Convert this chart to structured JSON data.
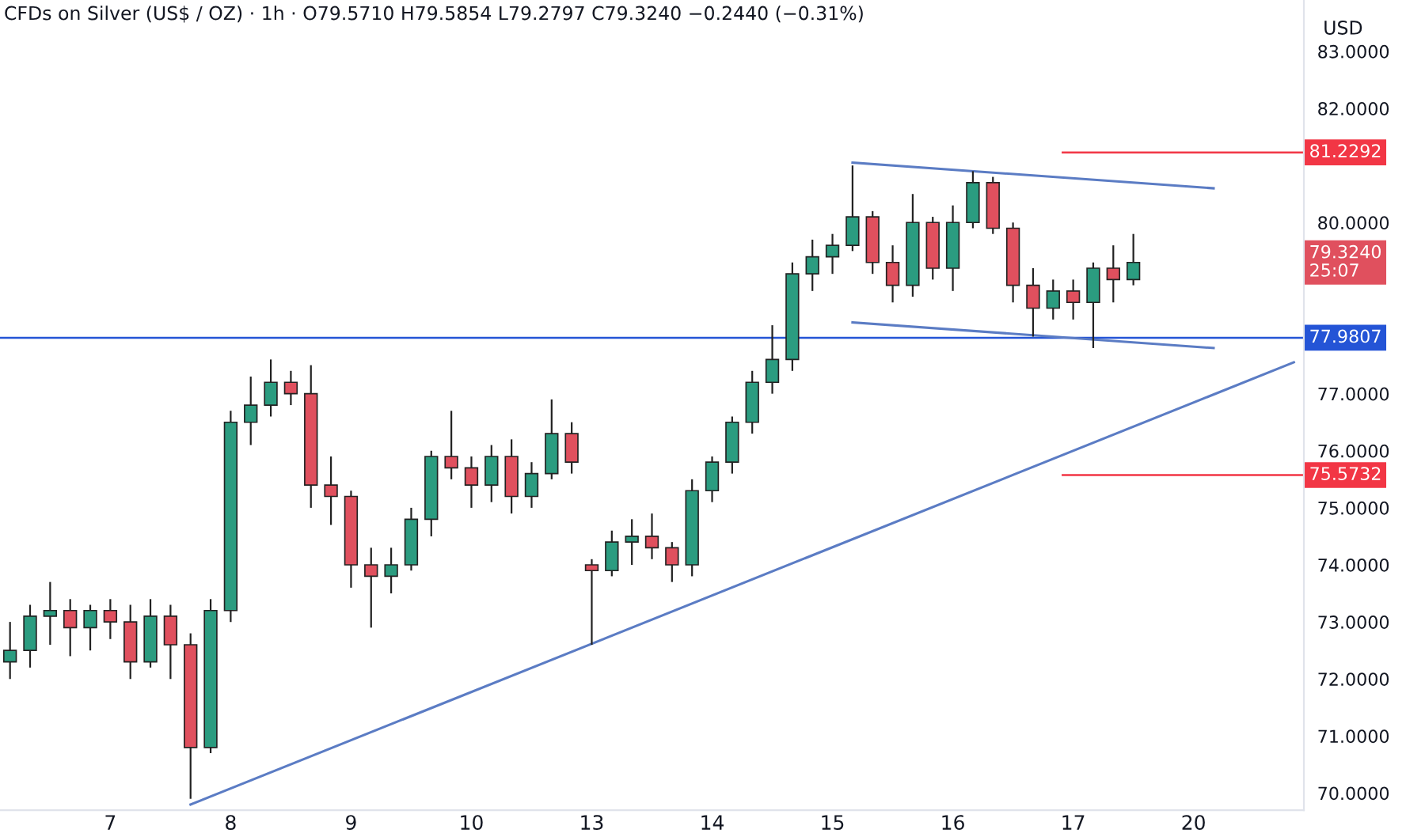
{
  "chart_data": {
    "type": "candlestick",
    "title": "CFDs on Silver (US$ / OZ) · 1h · O79.5710 H79.5854 L79.2797 C79.3240 −0.2440 (−0.31%)",
    "ylabel": "USD",
    "categories": [
      null,
      null,
      null,
      null,
      null,
      "7",
      null,
      null,
      null,
      null,
      null,
      "8",
      null,
      null,
      null,
      null,
      null,
      "9",
      null,
      null,
      null,
      null,
      null,
      "10",
      null,
      null,
      null,
      null,
      null,
      "13",
      null,
      null,
      null,
      null,
      null,
      "14",
      null,
      null,
      null,
      null,
      null,
      "15",
      null,
      null,
      null,
      null,
      null,
      "16",
      null,
      null,
      null,
      null,
      null,
      "17",
      null,
      null,
      null,
      null,
      null,
      "20",
      null,
      null,
      null,
      null,
      null
    ],
    "ohlc": [
      [
        72.3,
        73.0,
        72.0,
        72.5
      ],
      [
        72.5,
        73.3,
        72.2,
        73.1
      ],
      [
        73.1,
        73.7,
        72.6,
        73.2
      ],
      [
        73.2,
        73.4,
        72.4,
        72.9
      ],
      [
        72.9,
        73.3,
        72.5,
        73.2
      ],
      [
        73.2,
        73.4,
        72.7,
        73.0
      ],
      [
        73.0,
        73.3,
        72.0,
        72.3
      ],
      [
        72.3,
        73.4,
        72.2,
        73.1
      ],
      [
        73.1,
        73.3,
        72.0,
        72.6
      ],
      [
        72.6,
        72.8,
        69.9,
        70.8
      ],
      [
        70.8,
        73.4,
        70.7,
        73.2
      ],
      [
        73.2,
        76.7,
        73.0,
        76.5
      ],
      [
        76.5,
        77.3,
        76.1,
        76.8
      ],
      [
        76.8,
        77.6,
        76.6,
        77.2
      ],
      [
        77.2,
        77.4,
        76.8,
        77.0
      ],
      [
        77.0,
        77.5,
        75.0,
        75.4
      ],
      [
        75.4,
        75.9,
        74.7,
        75.2
      ],
      [
        75.2,
        75.3,
        73.6,
        74.0
      ],
      [
        74.0,
        74.3,
        72.9,
        73.8
      ],
      [
        73.8,
        74.3,
        73.5,
        74.0
      ],
      [
        74.0,
        75.0,
        73.9,
        74.8
      ],
      [
        74.8,
        76.0,
        74.5,
        75.9
      ],
      [
        75.9,
        76.7,
        75.5,
        75.7
      ],
      [
        75.7,
        75.9,
        75.0,
        75.4
      ],
      [
        75.4,
        76.1,
        75.1,
        75.9
      ],
      [
        75.9,
        76.2,
        74.9,
        75.2
      ],
      [
        75.2,
        75.8,
        75.0,
        75.6
      ],
      [
        75.6,
        76.9,
        75.5,
        76.3
      ],
      [
        76.3,
        76.5,
        75.6,
        75.8
      ],
      [
        74.0,
        74.1,
        72.6,
        73.9
      ],
      [
        73.9,
        74.6,
        73.8,
        74.4
      ],
      [
        74.4,
        74.8,
        74.0,
        74.5
      ],
      [
        74.5,
        74.9,
        74.1,
        74.3
      ],
      [
        74.3,
        74.4,
        73.7,
        74.0
      ],
      [
        74.0,
        75.5,
        73.8,
        75.3
      ],
      [
        75.3,
        75.9,
        75.1,
        75.8
      ],
      [
        75.8,
        76.6,
        75.6,
        76.5
      ],
      [
        76.5,
        77.4,
        76.3,
        77.2
      ],
      [
        77.2,
        78.2,
        77.0,
        77.6
      ],
      [
        77.6,
        79.3,
        77.4,
        79.1
      ],
      [
        79.1,
        79.7,
        78.8,
        79.4
      ],
      [
        79.4,
        79.8,
        79.1,
        79.6
      ],
      [
        79.6,
        81.0,
        79.5,
        80.1
      ],
      [
        80.1,
        80.2,
        79.1,
        79.3
      ],
      [
        79.3,
        79.6,
        78.6,
        78.9
      ],
      [
        78.9,
        80.5,
        78.7,
        80.0
      ],
      [
        80.0,
        80.1,
        79.0,
        79.2
      ],
      [
        79.2,
        80.3,
        78.8,
        80.0
      ],
      [
        80.0,
        80.9,
        79.9,
        80.7
      ],
      [
        80.7,
        80.8,
        79.8,
        79.9
      ],
      [
        79.9,
        80.0,
        78.6,
        78.9
      ],
      [
        78.9,
        79.2,
        78.0,
        78.5
      ],
      [
        78.5,
        79.0,
        78.3,
        78.8
      ],
      [
        78.8,
        79.0,
        78.3,
        78.6
      ],
      [
        78.6,
        79.3,
        77.8,
        79.2
      ],
      [
        79.2,
        79.6,
        78.6,
        79.0
      ],
      [
        79.0,
        79.8,
        78.9,
        79.3
      ],
      null,
      null,
      null,
      null,
      null,
      null,
      null,
      null
    ],
    "series": [
      {
        "type": "line",
        "color": "#5b7cc4",
        "line_style": "solid",
        "values": [
          null,
          null,
          null,
          null,
          null,
          null,
          null,
          null,
          null,
          69.8,
          null,
          null,
          null,
          null,
          null,
          null,
          null,
          null,
          null,
          null,
          null,
          null,
          null,
          null,
          null,
          null,
          null,
          null,
          null,
          null,
          null,
          null,
          null,
          null,
          null,
          null,
          null,
          null,
          null,
          null,
          null,
          null,
          null,
          null,
          null,
          null,
          null,
          null,
          null,
          null,
          null,
          null,
          null,
          null,
          null,
          null,
          null,
          null,
          null,
          null,
          null,
          null,
          null,
          null,
          77.55
        ]
      },
      {
        "type": "line",
        "color": "#5b7cc4",
        "line_style": "solid",
        "values": [
          null,
          null,
          null,
          null,
          null,
          null,
          null,
          null,
          null,
          null,
          null,
          null,
          null,
          null,
          null,
          null,
          null,
          null,
          null,
          null,
          null,
          null,
          null,
          null,
          null,
          null,
          null,
          null,
          null,
          null,
          null,
          null,
          null,
          null,
          null,
          null,
          null,
          null,
          null,
          null,
          null,
          null,
          81.05,
          null,
          null,
          null,
          null,
          null,
          null,
          null,
          null,
          null,
          null,
          null,
          null,
          null,
          null,
          null,
          null,
          null,
          80.6,
          null,
          null,
          null,
          null
        ]
      },
      {
        "type": "line",
        "color": "#5b7cc4",
        "line_style": "solid",
        "values": [
          null,
          null,
          null,
          null,
          null,
          null,
          null,
          null,
          null,
          null,
          null,
          null,
          null,
          null,
          null,
          null,
          null,
          null,
          null,
          null,
          null,
          null,
          null,
          null,
          null,
          null,
          null,
          null,
          null,
          null,
          null,
          null,
          null,
          null,
          null,
          null,
          null,
          null,
          null,
          null,
          null,
          null,
          78.25,
          null,
          null,
          null,
          null,
          null,
          null,
          null,
          null,
          null,
          null,
          null,
          null,
          null,
          null,
          null,
          null,
          null,
          77.8,
          null,
          null,
          null,
          null
        ]
      }
    ],
    "ref_lines": [
      {
        "axis": "y",
        "value": 77.9807,
        "label": "77.9807",
        "color": "#2454d6"
      },
      {
        "axis": "y",
        "value": 81.2292,
        "label": "81.2292",
        "color": "#f23645"
      },
      {
        "axis": "y",
        "value": 75.5732,
        "label": "75.5732",
        "color": "#f23645"
      }
    ],
    "annotations": [
      "79.3240\n25:07"
    ],
    "ylim": [
      69.7,
      83.9
    ],
    "yticks": [
      {
        "value": 70,
        "label": "70.0000"
      },
      {
        "value": 71,
        "label": "71.0000"
      },
      {
        "value": 72,
        "label": "72.0000"
      },
      {
        "value": 73,
        "label": "73.0000"
      },
      {
        "value": 74,
        "label": "74.0000"
      },
      {
        "value": 75,
        "label": "75.0000"
      },
      {
        "value": 76,
        "label": "76.0000"
      },
      {
        "value": 77,
        "label": "77.0000"
      },
      {
        "value": 80,
        "label": "80.0000"
      },
      {
        "value": 82,
        "label": "82.0000"
      },
      {
        "value": 83,
        "label": "83.0000"
      }
    ],
    "grid": false,
    "legend": false
  }
}
